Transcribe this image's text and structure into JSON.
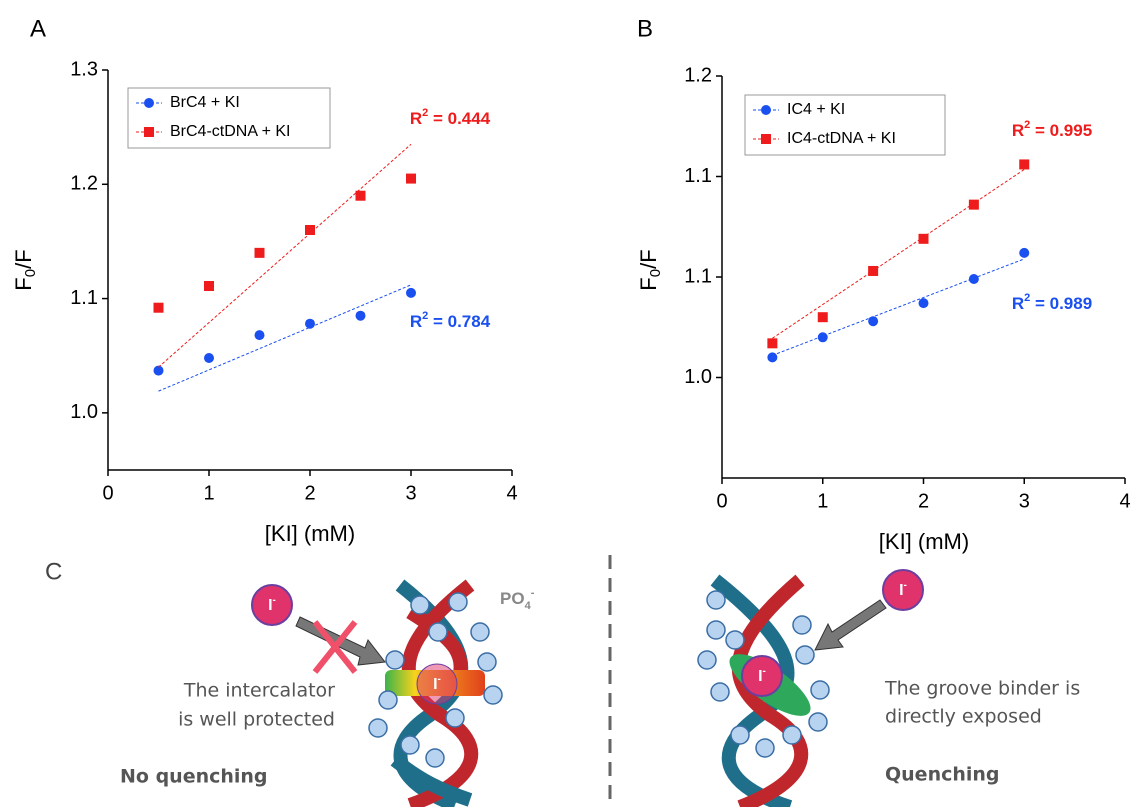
{
  "chart_data": [
    {
      "type": "scatter",
      "panel_label": "A",
      "xlabel": "[KI] (mM)",
      "ylabel": {
        "base": "F",
        "sub": "0",
        "rest": "/F"
      },
      "xlim": [
        0,
        4
      ],
      "ylim": [
        0.95,
        1.3
      ],
      "xticks": [
        0,
        1,
        2,
        3,
        4
      ],
      "yticks": [
        {
          "value": 1,
          "label": "1.0"
        },
        1.1,
        1.2,
        1.3
      ],
      "legend": "upper left",
      "series": [
        {
          "name": "BrC4 + KI",
          "color": "#1a4ff0",
          "marker": "circle",
          "x": [
            0.5,
            1,
            1.5,
            2,
            2.5,
            3
          ],
          "values": [
            1.037,
            1.048,
            1.068,
            1.078,
            1.085,
            1.105
          ],
          "fit": {
            "x": [
              0.5,
              3
            ],
            "values": [
              1.019,
              1.112
            ]
          }
        },
        {
          "name": "BrC4-ctDNA + KI",
          "color": "#ee1c1c",
          "marker": "square",
          "x": [
            0.5,
            1,
            1.5,
            2,
            2.5,
            3
          ],
          "values": [
            1.092,
            1.111,
            1.14,
            1.16,
            1.19,
            1.205
          ],
          "fit": {
            "x": [
              0.5,
              3
            ],
            "values": [
              1.04,
              1.235
            ]
          }
        }
      ],
      "annotations": [
        {
          "base": "R",
          "sup": "2",
          "rest": " = 0.444",
          "color": "#ee1c1c"
        },
        {
          "base": "R",
          "sup": "2",
          "rest": " = 0.784",
          "color": "#1a4ff0"
        }
      ]
    },
    {
      "type": "scatter",
      "panel_label": "B",
      "xlabel": "[KI] (mM)",
      "ylabel": {
        "base": "F",
        "sub": "0",
        "rest": "/F"
      },
      "xlim": [
        0,
        4
      ],
      "ylim": [
        0.95,
        1.15
      ],
      "xticks": [
        0,
        1,
        2,
        3,
        4
      ],
      "yticks": [
        {
          "value": 1,
          "label": "1.0"
        },
        {
          "value": 1.05,
          "label": "1.1"
        },
        {
          "value": 1.1,
          "label": "1.1"
        },
        {
          "value": 1.15,
          "label": "1.2"
        }
      ],
      "legend": "upper left",
      "series": [
        {
          "name": "IC4 + KI",
          "color": "#1a4ff0",
          "marker": "circle",
          "x": [
            0.5,
            1,
            1.5,
            2,
            2.5,
            3
          ],
          "values": [
            1.01,
            1.02,
            1.028,
            1.037,
            1.049,
            1.062
          ],
          "fit": {
            "x": [
              0.5,
              3
            ],
            "values": [
              1.011,
              1.059
            ]
          }
        },
        {
          "name": "IC4-ctDNA + KI",
          "color": "#ee1c1c",
          "marker": "square",
          "x": [
            0.5,
            1,
            1.5,
            2,
            2.5,
            3
          ],
          "values": [
            1.017,
            1.03,
            1.053,
            1.069,
            1.086,
            1.106
          ],
          "fit": {
            "x": [
              0.5,
              3
            ],
            "values": [
              1.0195,
              1.1035
            ]
          }
        }
      ],
      "annotations": [
        {
          "base": "R",
          "sup": "2",
          "rest": " = 0.995",
          "color": "#ee1c1c"
        },
        {
          "base": "R",
          "sup": "2",
          "rest": " = 0.989",
          "color": "#1a4ff0"
        }
      ]
    }
  ],
  "panel_c": {
    "label": "C",
    "ion": {
      "base": "I",
      "sup": "-"
    },
    "po4": {
      "base": "PO",
      "sub": "4",
      "sup": "-"
    },
    "left": {
      "lines": [
        "The intercalator",
        "is well protected"
      ],
      "result": "No quenching"
    },
    "right": {
      "lines": [
        "The groove binder is",
        "directly exposed"
      ],
      "result": "Quenching"
    }
  }
}
